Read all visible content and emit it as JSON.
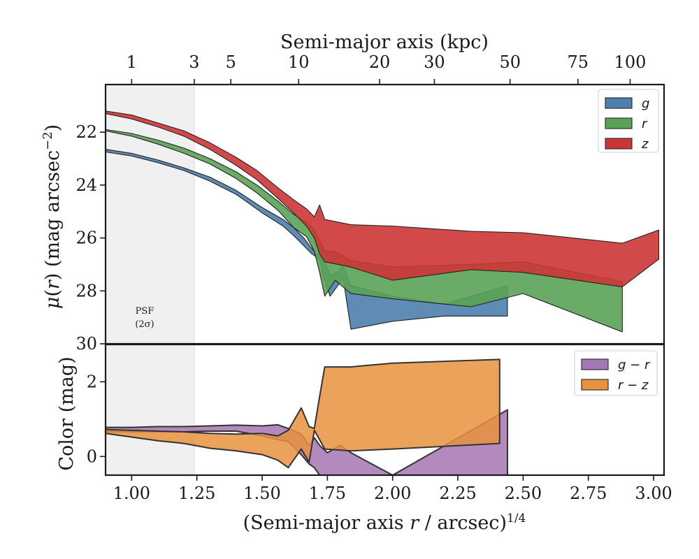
{
  "chart_data": [
    {
      "type": "area",
      "panel": "surface-brightness",
      "title": "",
      "xlabel_html": "(Semi-major axis <tspan font-style='italic'>r</tspan> / arcsec)<tspan dy='-10' font-size='17'>1/4</tspan>",
      "xlabel": "(Semi-major axis r / arcsec)1/4",
      "top_xlabel": "Semi-major axis (kpc)",
      "ylabel": "μ(r) (mag arcsec−2)",
      "xlim": [
        0.9,
        3.04
      ],
      "ylim": [
        30,
        20.2
      ],
      "y_inverted": true,
      "y_ticks": [
        22,
        24,
        26,
        28,
        30
      ],
      "top_ticks": [
        {
          "label": "1",
          "x": 1.0
        },
        {
          "label": "3",
          "x": 1.24
        },
        {
          "label": "5",
          "x": 1.38
        },
        {
          "label": "10",
          "x": 1.64
        },
        {
          "label": "20",
          "x": 1.95
        },
        {
          "label": "30",
          "x": 2.16
        },
        {
          "label": "50",
          "x": 2.45
        },
        {
          "label": "75",
          "x": 2.71
        },
        {
          "label": "100",
          "x": 2.91
        }
      ],
      "shaded_region": {
        "x": [
          0.9,
          1.24
        ],
        "label_line1": "PSF",
        "label_line2": "(2σ)"
      },
      "legend_position": "top-right",
      "series": [
        {
          "name": "g",
          "color": "#4e7fad",
          "upper": [
            [
              0.9,
              22.65
            ],
            [
              1.0,
              22.8
            ],
            [
              1.1,
              23.05
            ],
            [
              1.2,
              23.35
            ],
            [
              1.3,
              23.7
            ],
            [
              1.4,
              24.2
            ],
            [
              1.5,
              24.85
            ],
            [
              1.58,
              25.3
            ],
            [
              1.62,
              25.6
            ],
            [
              1.66,
              26.0
            ],
            [
              1.69,
              26.4
            ],
            [
              1.72,
              26.7
            ],
            [
              1.74,
              26.9
            ],
            [
              1.76,
              27.4
            ],
            [
              1.79,
              27.3
            ],
            [
              1.81,
              27.05
            ],
            [
              1.84,
              27.8
            ],
            [
              2.0,
              28.2
            ],
            [
              2.2,
              28.5
            ],
            [
              2.44,
              27.8
            ]
          ],
          "lower": [
            [
              0.9,
              22.75
            ],
            [
              1.0,
              22.9
            ],
            [
              1.1,
              23.15
            ],
            [
              1.2,
              23.45
            ],
            [
              1.3,
              23.85
            ],
            [
              1.4,
              24.35
            ],
            [
              1.5,
              25.05
            ],
            [
              1.58,
              25.55
            ],
            [
              1.62,
              25.9
            ],
            [
              1.66,
              26.3
            ],
            [
              1.69,
              26.6
            ],
            [
              1.72,
              26.8
            ],
            [
              1.74,
              27.6
            ],
            [
              1.76,
              28.2
            ],
            [
              1.79,
              27.8
            ],
            [
              1.81,
              27.5
            ],
            [
              1.84,
              29.45
            ],
            [
              2.0,
              29.15
            ],
            [
              2.2,
              28.95
            ],
            [
              2.44,
              28.95
            ]
          ]
        },
        {
          "name": "r",
          "color": "#5aa356",
          "upper": [
            [
              0.9,
              21.9
            ],
            [
              1.0,
              22.05
            ],
            [
              1.1,
              22.3
            ],
            [
              1.2,
              22.6
            ],
            [
              1.3,
              23.0
            ],
            [
              1.4,
              23.5
            ],
            [
              1.48,
              24.0
            ],
            [
              1.56,
              24.6
            ],
            [
              1.62,
              25.1
            ],
            [
              1.67,
              25.4
            ],
            [
              1.7,
              25.7
            ],
            [
              1.72,
              26.1
            ],
            [
              1.74,
              26.5
            ],
            [
              1.78,
              26.5
            ],
            [
              1.84,
              26.85
            ],
            [
              2.0,
              27.1
            ],
            [
              2.3,
              27.0
            ],
            [
              2.5,
              26.9
            ],
            [
              2.88,
              27.65
            ]
          ],
          "lower": [
            [
              0.9,
              21.95
            ],
            [
              1.0,
              22.15
            ],
            [
              1.1,
              22.45
            ],
            [
              1.2,
              22.8
            ],
            [
              1.3,
              23.2
            ],
            [
              1.4,
              23.75
            ],
            [
              1.48,
              24.3
            ],
            [
              1.56,
              24.95
            ],
            [
              1.62,
              25.6
            ],
            [
              1.67,
              25.95
            ],
            [
              1.7,
              26.5
            ],
            [
              1.72,
              27.3
            ],
            [
              1.74,
              28.2
            ],
            [
              1.78,
              27.6
            ],
            [
              1.84,
              28.1
            ],
            [
              2.0,
              28.3
            ],
            [
              2.3,
              28.6
            ],
            [
              2.5,
              28.1
            ],
            [
              2.88,
              29.55
            ]
          ]
        },
        {
          "name": "z",
          "color": "#cc3535",
          "upper": [
            [
              0.9,
              21.2
            ],
            [
              1.0,
              21.35
            ],
            [
              1.1,
              21.65
            ],
            [
              1.2,
              21.95
            ],
            [
              1.3,
              22.4
            ],
            [
              1.4,
              22.95
            ],
            [
              1.48,
              23.45
            ],
            [
              1.56,
              24.1
            ],
            [
              1.62,
              24.55
            ],
            [
              1.67,
              24.9
            ],
            [
              1.7,
              25.2
            ],
            [
              1.72,
              24.75
            ],
            [
              1.74,
              25.3
            ],
            [
              1.84,
              25.5
            ],
            [
              2.0,
              25.55
            ],
            [
              2.3,
              25.75
            ],
            [
              2.5,
              25.8
            ],
            [
              2.88,
              26.2
            ],
            [
              3.02,
              25.7
            ]
          ],
          "lower": [
            [
              0.9,
              21.3
            ],
            [
              1.0,
              21.5
            ],
            [
              1.1,
              21.8
            ],
            [
              1.2,
              22.15
            ],
            [
              1.3,
              22.65
            ],
            [
              1.4,
              23.25
            ],
            [
              1.48,
              23.8
            ],
            [
              1.56,
              24.5
            ],
            [
              1.62,
              25.05
            ],
            [
              1.67,
              25.55
            ],
            [
              1.7,
              26.0
            ],
            [
              1.72,
              26.6
            ],
            [
              1.74,
              26.9
            ],
            [
              1.84,
              27.1
            ],
            [
              2.0,
              27.6
            ],
            [
              2.3,
              27.2
            ],
            [
              2.5,
              27.3
            ],
            [
              2.88,
              27.85
            ],
            [
              3.02,
              26.8
            ]
          ]
        }
      ]
    },
    {
      "type": "area",
      "panel": "color",
      "title": "",
      "xlabel": "",
      "ylabel": "Color (mag)",
      "xlim": [
        0.9,
        3.04
      ],
      "ylim": [
        -0.5,
        3.0
      ],
      "y_ticks": [
        0,
        2
      ],
      "x_ticks": [
        1.0,
        1.25,
        1.5,
        1.75,
        2.0,
        2.25,
        2.5,
        2.75,
        3.0
      ],
      "x_tick_labels": [
        "1.00",
        "1.25",
        "1.50",
        "1.75",
        "2.00",
        "2.25",
        "2.50",
        "2.75",
        "3.00"
      ],
      "legend_position": "top-right",
      "series": [
        {
          "name": "g − r",
          "color": "#a476b3",
          "upper": [
            [
              0.9,
              0.78
            ],
            [
              1.0,
              0.78
            ],
            [
              1.1,
              0.8
            ],
            [
              1.2,
              0.8
            ],
            [
              1.3,
              0.82
            ],
            [
              1.4,
              0.84
            ],
            [
              1.5,
              0.82
            ],
            [
              1.56,
              0.85
            ],
            [
              1.6,
              0.75
            ],
            [
              1.65,
              0.6
            ],
            [
              1.68,
              0.3
            ],
            [
              1.7,
              0.5
            ],
            [
              1.72,
              0.3
            ],
            [
              1.75,
              0.1
            ],
            [
              1.8,
              0.3
            ],
            [
              1.84,
              0.1
            ],
            [
              2.0,
              -0.5
            ],
            [
              2.44,
              1.25
            ]
          ],
          "lower": [
            [
              0.9,
              0.66
            ],
            [
              1.0,
              0.66
            ],
            [
              1.1,
              0.66
            ],
            [
              1.2,
              0.66
            ],
            [
              1.3,
              0.68
            ],
            [
              1.4,
              0.68
            ],
            [
              1.5,
              0.55
            ],
            [
              1.56,
              0.45
            ],
            [
              1.6,
              0.4
            ],
            [
              1.65,
              0.05
            ],
            [
              1.68,
              -0.2
            ],
            [
              1.7,
              -0.3
            ],
            [
              1.72,
              -0.5
            ],
            [
              1.75,
              -0.5
            ],
            [
              1.8,
              -0.5
            ],
            [
              1.84,
              -0.5
            ],
            [
              2.0,
              -0.5
            ],
            [
              2.44,
              -0.5
            ]
          ]
        },
        {
          "name": "r − z",
          "color": "#e8923e",
          "upper": [
            [
              0.9,
              0.72
            ],
            [
              1.0,
              0.7
            ],
            [
              1.1,
              0.68
            ],
            [
              1.2,
              0.66
            ],
            [
              1.3,
              0.62
            ],
            [
              1.4,
              0.6
            ],
            [
              1.5,
              0.62
            ],
            [
              1.56,
              0.55
            ],
            [
              1.6,
              0.7
            ],
            [
              1.65,
              1.3
            ],
            [
              1.68,
              0.8
            ],
            [
              1.7,
              0.75
            ],
            [
              1.72,
              1.6
            ],
            [
              1.74,
              2.4
            ],
            [
              1.84,
              2.4
            ],
            [
              2.0,
              2.5
            ],
            [
              2.41,
              2.6
            ]
          ],
          "lower": [
            [
              0.9,
              0.62
            ],
            [
              1.0,
              0.52
            ],
            [
              1.1,
              0.42
            ],
            [
              1.2,
              0.35
            ],
            [
              1.3,
              0.22
            ],
            [
              1.4,
              0.15
            ],
            [
              1.5,
              0.05
            ],
            [
              1.56,
              -0.1
            ],
            [
              1.6,
              -0.3
            ],
            [
              1.65,
              0.2
            ],
            [
              1.68,
              -0.15
            ],
            [
              1.7,
              0.7
            ],
            [
              1.72,
              0.45
            ],
            [
              1.74,
              0.2
            ],
            [
              1.84,
              0.15
            ],
            [
              2.0,
              0.2
            ],
            [
              2.41,
              0.35
            ]
          ]
        }
      ]
    }
  ]
}
